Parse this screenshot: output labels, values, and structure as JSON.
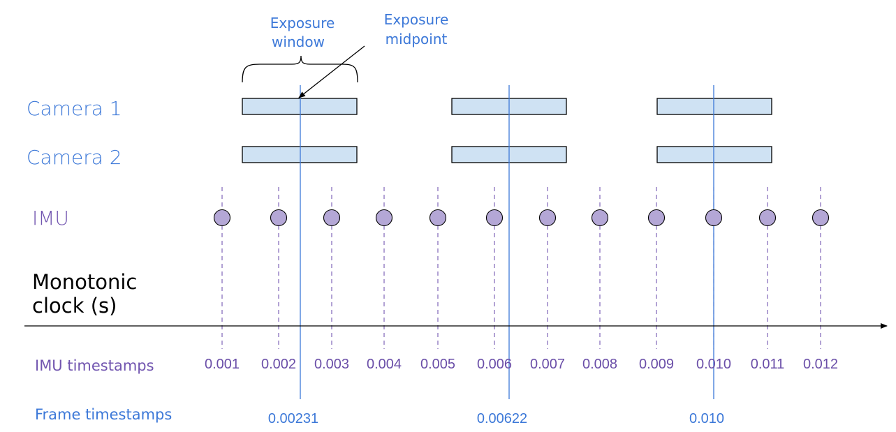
{
  "rows": {
    "camera1": "Camera 1",
    "camera2": "Camera 2",
    "imu": "IMU",
    "clock_line1": "Monotonic",
    "clock_line2": "clock (s)"
  },
  "annotations": {
    "exposure_window_line1": "Exposure",
    "exposure_window_line2": "window",
    "exposure_midpoint_line1": "Exposure",
    "exposure_midpoint_line2": "midpoint"
  },
  "captions": {
    "imu_timestamps": "IMU timestamps",
    "frame_timestamps": "Frame timestamps"
  },
  "imu_timestamps": [
    "0.001",
    "0.002",
    "0.003",
    "0.004",
    "0.005",
    "0.006",
    "0.007",
    "0.008",
    "0.009",
    "0.010",
    "0.011",
    "0.012"
  ],
  "frame_timestamps": [
    "0.00231",
    "0.00622",
    "0.010"
  ],
  "colors": {
    "camera_label": "#3c78d8",
    "imu_label": "#7256b0",
    "exposure_fill": "#cfe2f3",
    "imu_dot_fill": "#b4a7d6",
    "midpoint_line": "#3c78d8",
    "imu_dashed_line": "#7256b0"
  }
}
